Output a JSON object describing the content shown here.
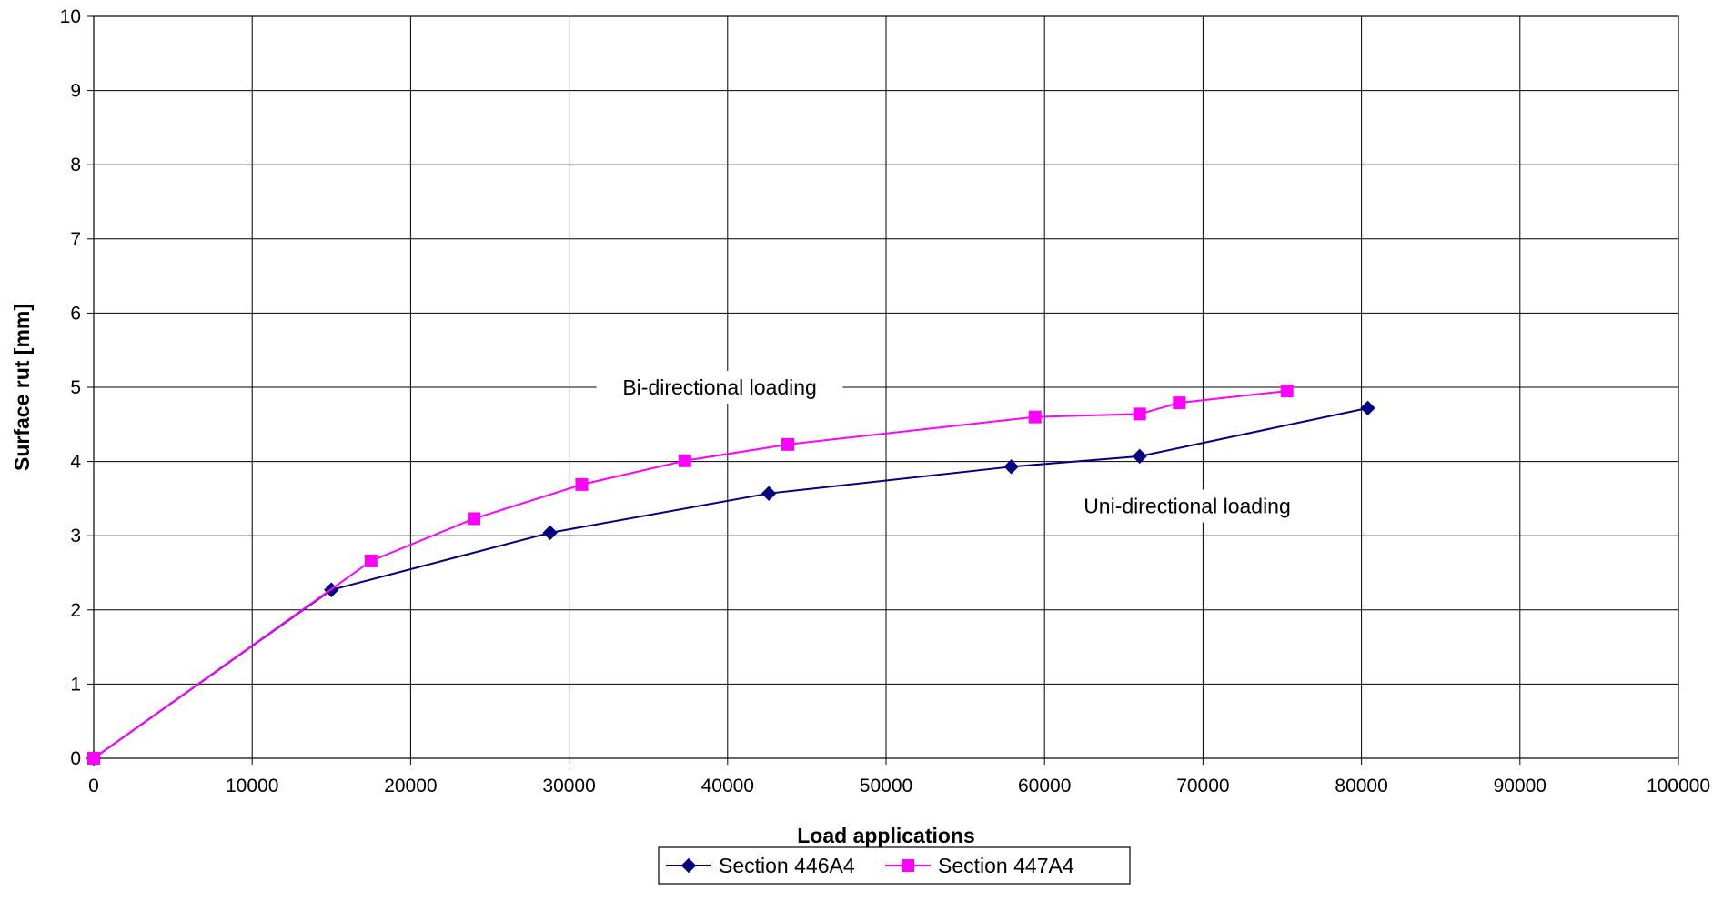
{
  "chart_data": {
    "type": "line",
    "title": "",
    "xlabel": "Load applications",
    "ylabel": "Surface rut [mm]",
    "xlim": [
      0,
      100000
    ],
    "ylim": [
      0,
      10
    ],
    "xticks": [
      0,
      10000,
      20000,
      30000,
      40000,
      50000,
      60000,
      70000,
      80000,
      90000,
      100000
    ],
    "yticks": [
      0,
      1,
      2,
      3,
      4,
      5,
      6,
      7,
      8,
      9,
      10
    ],
    "grid": true,
    "legend_position": "bottom-center",
    "series": [
      {
        "name": "Section 446A4",
        "color": "#000080",
        "marker": "diamond",
        "x": [
          0,
          15000,
          28800,
          42600,
          57900,
          66000,
          80400
        ],
        "y": [
          0,
          2.27,
          3.04,
          3.57,
          3.93,
          4.07,
          4.72
        ]
      },
      {
        "name": "Section 447A4",
        "color": "#FF00FF",
        "marker": "square",
        "x": [
          0,
          17500,
          24000,
          30800,
          37300,
          43800,
          59400,
          66000,
          68500,
          75300
        ],
        "y": [
          0,
          2.66,
          3.23,
          3.69,
          4.01,
          4.23,
          4.6,
          4.64,
          4.79,
          4.95
        ]
      }
    ],
    "annotations": [
      {
        "text": "Bi-directional loading",
        "x": 39500,
        "y": 5.0
      },
      {
        "text": "Uni-directional loading",
        "x": 69000,
        "y": 3.4
      }
    ]
  }
}
